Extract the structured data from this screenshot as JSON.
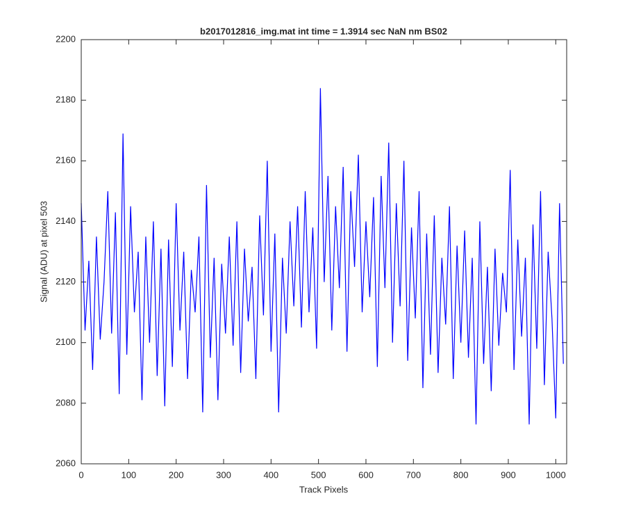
{
  "chart_data": {
    "type": "line",
    "title": "b2017012816_img.mat int time = 1.3914 sec  NaN nm BS02",
    "x_label": "Track Pixels",
    "y_label": "Signal (ADU) at pixel 503",
    "x": [
      0,
      8,
      16,
      24,
      32,
      40,
      48,
      56,
      64,
      72,
      80,
      88,
      96,
      104,
      112,
      120,
      128,
      136,
      144,
      152,
      160,
      168,
      176,
      184,
      192,
      200,
      208,
      216,
      224,
      232,
      240,
      248,
      256,
      264,
      272,
      280,
      288,
      296,
      304,
      312,
      320,
      328,
      336,
      344,
      352,
      360,
      368,
      376,
      384,
      392,
      400,
      408,
      416,
      424,
      432,
      440,
      448,
      456,
      464,
      472,
      480,
      488,
      496,
      504,
      512,
      520,
      528,
      536,
      544,
      552,
      560,
      568,
      576,
      584,
      592,
      600,
      608,
      616,
      624,
      632,
      640,
      648,
      656,
      664,
      672,
      680,
      688,
      696,
      704,
      712,
      720,
      728,
      736,
      744,
      752,
      760,
      768,
      776,
      784,
      792,
      800,
      808,
      816,
      824,
      832,
      840,
      848,
      856,
      864,
      872,
      880,
      888,
      896,
      904,
      912,
      920,
      928,
      936,
      944,
      952,
      960,
      968,
      976,
      984,
      992,
      1000,
      1008,
      1016
    ],
    "series": [
      {
        "name": "Signal",
        "color": "#0000ff",
        "values": [
          2146,
          2104,
          2127,
          2091,
          2135,
          2101,
          2120,
          2150,
          2103,
          2143,
          2083,
          2169,
          2096,
          2145,
          2110,
          2130,
          2081,
          2135,
          2100,
          2140,
          2089,
          2131,
          2079,
          2134,
          2092,
          2146,
          2104,
          2130,
          2088,
          2124,
          2110,
          2135,
          2077,
          2152,
          2095,
          2128,
          2081,
          2126,
          2103,
          2135,
          2099,
          2140,
          2090,
          2131,
          2107,
          2125,
          2088,
          2142,
          2109,
          2160,
          2097,
          2136,
          2077,
          2128,
          2103,
          2140,
          2112,
          2145,
          2105,
          2150,
          2110,
          2138,
          2098,
          2184,
          2120,
          2155,
          2104,
          2145,
          2118,
          2158,
          2097,
          2150,
          2125,
          2162,
          2110,
          2140,
          2115,
          2148,
          2092,
          2155,
          2118,
          2166,
          2100,
          2146,
          2112,
          2160,
          2094,
          2138,
          2108,
          2150,
          2085,
          2136,
          2096,
          2142,
          2090,
          2128,
          2106,
          2145,
          2088,
          2132,
          2100,
          2137,
          2095,
          2128,
          2073,
          2140,
          2093,
          2125,
          2084,
          2131,
          2099,
          2123,
          2110,
          2157,
          2091,
          2134,
          2102,
          2128,
          2073,
          2139,
          2098,
          2150,
          2086,
          2130,
          2108,
          2075,
          2146,
          2093
        ]
      }
    ],
    "xlim": [
      0,
      1023
    ],
    "ylim": [
      2060,
      2200
    ],
    "xticks": [
      0,
      100,
      200,
      300,
      400,
      500,
      600,
      700,
      800,
      900,
      1000
    ],
    "yticks": [
      2060,
      2080,
      2100,
      2120,
      2140,
      2160,
      2180,
      2200
    ]
  }
}
